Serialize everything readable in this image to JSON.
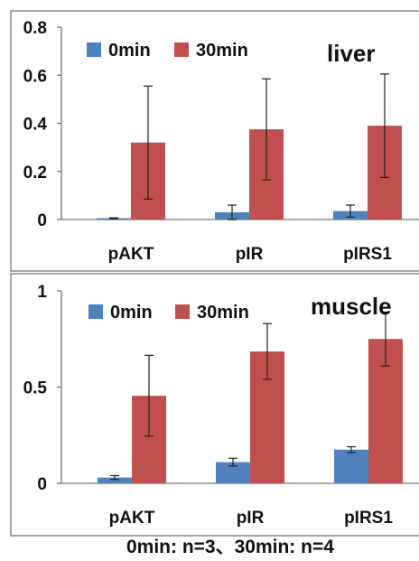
{
  "chart_data": [
    {
      "type": "bar",
      "panel_label": "liver",
      "categories": [
        "pAKT",
        "pIR",
        "pIRS1"
      ],
      "series": [
        {
          "name": "0min",
          "color": "#4F81BD",
          "values": [
            0.005,
            0.03,
            0.035
          ],
          "errors": [
            0.002,
            0.03,
            0.025
          ]
        },
        {
          "name": "30min",
          "color": "#C0504D",
          "values": [
            0.32,
            0.375,
            0.39
          ],
          "errors": [
            0.235,
            0.21,
            0.215
          ]
        }
      ],
      "ylim": [
        0,
        0.8
      ],
      "yticks": [
        "0",
        "0.2",
        "0.4",
        "0.6",
        "0.8"
      ],
      "ytick_values": [
        0,
        0.2,
        0.4,
        0.6,
        0.8
      ],
      "legend_position": "top-left",
      "grid": false,
      "title": "",
      "xlabel": "",
      "ylabel": ""
    },
    {
      "type": "bar",
      "panel_label": "muscle",
      "categories": [
        "pAKT",
        "pIR",
        "pIRS1"
      ],
      "series": [
        {
          "name": "0min",
          "color": "#4F81BD",
          "values": [
            0.03,
            0.11,
            0.175
          ],
          "errors": [
            0.01,
            0.02,
            0.015
          ]
        },
        {
          "name": "30min",
          "color": "#C0504D",
          "values": [
            0.455,
            0.685,
            0.75
          ],
          "errors": [
            0.21,
            0.145,
            0.14
          ]
        }
      ],
      "ylim": [
        0,
        1
      ],
      "yticks": [
        "0",
        "0.5",
        "1"
      ],
      "ytick_values": [
        0,
        0.5,
        1
      ],
      "legend_position": "top-left",
      "grid": false,
      "title": "",
      "xlabel": "",
      "ylabel": ""
    }
  ],
  "footnote": "0min: n=3、30min: n=4"
}
